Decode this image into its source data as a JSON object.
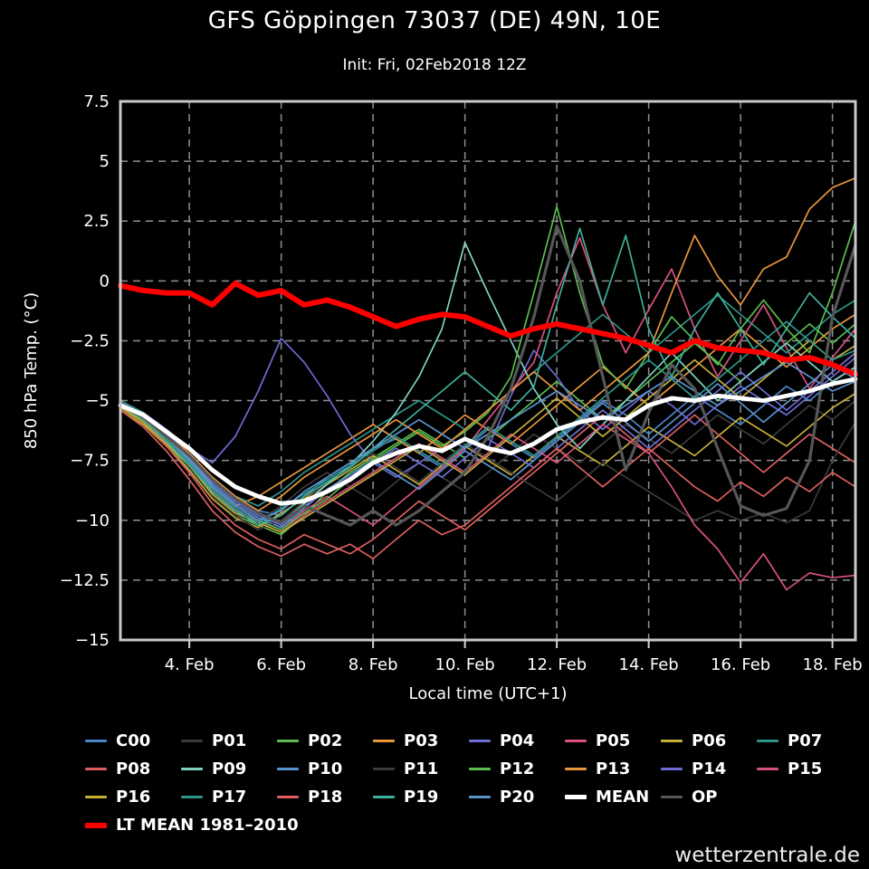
{
  "title": "GFS Göppingen 73037 (DE) 49N, 10E",
  "subtitle": "Init: Fri, 02Feb2018 12Z",
  "watermark": "wetterzentrale.de",
  "chart_data": {
    "type": "line",
    "title": "GFS Göppingen 73037 (DE) 49N, 10E",
    "subtitle": "Init: Fri, 02Feb2018 12Z",
    "xlabel": "Local time (UTC+1)",
    "ylabel": "850 hPa Temp. (°C)",
    "grid": true,
    "legend_position": "bottom",
    "background": "#000000",
    "xlim": [
      2.5,
      18.5
    ],
    "ylim": [
      -15,
      7.5
    ],
    "x_unit": "day of February 2018",
    "x_tick_values": [
      4,
      6,
      8,
      10,
      12,
      14,
      16,
      18
    ],
    "x_tick_labels": [
      "4. Feb",
      "6. Feb",
      "8. Feb",
      "10. Feb",
      "12. Feb",
      "14. Feb",
      "16. Feb",
      "18. Feb"
    ],
    "y_ticks": [
      7.5,
      5,
      2.5,
      0,
      -2.5,
      -5,
      -7.5,
      -10,
      -12.5,
      -15
    ],
    "y_tick_labels": [
      "7.5",
      "5",
      "2.5",
      "0",
      "−2.5",
      "−5",
      "−7.5",
      "−10",
      "−12.5",
      "−15"
    ],
    "x": [
      2.5,
      3,
      3.5,
      4,
      4.5,
      5,
      5.5,
      6,
      6.5,
      7,
      7.5,
      8,
      8.5,
      9,
      9.5,
      10,
      10.5,
      11,
      11.5,
      12,
      12.5,
      13,
      13.5,
      14,
      14.5,
      15,
      15.5,
      16,
      16.5,
      17,
      17.5,
      18,
      18.5
    ],
    "series": [
      {
        "name": "C00",
        "color": "#4c86c8",
        "width": 1.7,
        "values": [
          -5.2,
          -5.8,
          -6.6,
          -7.4,
          -8.4,
          -9.2,
          -9.6,
          -9.8,
          -9.0,
          -8.2,
          -7.6,
          -7.0,
          -6.6,
          -7.2,
          -7.8,
          -7.0,
          -6.2,
          -6.8,
          -7.4,
          -6.6,
          -5.8,
          -5.0,
          -5.6,
          -6.4,
          -5.6,
          -4.8,
          -5.4,
          -6.0,
          -5.2,
          -4.4,
          -5.0,
          -4.2,
          -3.6
        ]
      },
      {
        "name": "P01",
        "color": "#3a3a3a",
        "width": 1.7,
        "values": [
          -5.1,
          -5.6,
          -6.4,
          -7.6,
          -8.8,
          -9.6,
          -10.0,
          -9.4,
          -8.6,
          -8.0,
          -8.6,
          -9.2,
          -8.4,
          -7.6,
          -8.2,
          -8.8,
          -8.0,
          -7.2,
          -6.4,
          -7.0,
          -7.6,
          -6.8,
          -6.0,
          -6.6,
          -7.2,
          -6.4,
          -5.6,
          -6.2,
          -6.8,
          -6.0,
          -5.2,
          -5.8,
          -5.0
        ]
      },
      {
        "name": "P02",
        "color": "#5cbc4f",
        "width": 1.7,
        "values": [
          -5.3,
          -5.9,
          -6.8,
          -7.8,
          -9.0,
          -9.8,
          -10.2,
          -10.6,
          -9.8,
          -8.8,
          -8.0,
          -7.4,
          -6.8,
          -6.2,
          -6.8,
          -7.4,
          -6.6,
          -5.8,
          -5.0,
          -4.2,
          -5.0,
          -5.8,
          -5.0,
          -4.2,
          -3.4,
          -2.6,
          -3.4,
          -4.2,
          -3.4,
          -2.6,
          -1.8,
          -2.6,
          -1.8
        ]
      },
      {
        "name": "P03",
        "color": "#e9953c",
        "width": 1.7,
        "values": [
          -5.2,
          -5.7,
          -6.5,
          -7.5,
          -8.6,
          -9.4,
          -9.0,
          -8.4,
          -7.8,
          -7.2,
          -6.6,
          -6.0,
          -6.6,
          -7.2,
          -6.4,
          -5.6,
          -6.2,
          -6.8,
          -6.0,
          -5.2,
          -4.4,
          -3.6,
          -4.4,
          -5.2,
          -4.4,
          -3.6,
          -2.8,
          -2.0,
          -2.8,
          -3.6,
          -2.8,
          -2.0,
          -1.4
        ]
      },
      {
        "name": "P04",
        "color": "#6c6cd4",
        "width": 1.7,
        "values": [
          -5.1,
          -5.5,
          -6.2,
          -7.0,
          -7.6,
          -6.5,
          -4.6,
          -2.4,
          -3.4,
          -4.8,
          -6.4,
          -7.6,
          -8.2,
          -7.6,
          -7.0,
          -6.6,
          -7.0,
          -4.8,
          -2.9,
          -4.0,
          -5.4,
          -6.2,
          -5.4,
          -4.6,
          -5.2,
          -6.0,
          -5.2,
          -4.4,
          -5.0,
          -5.6,
          -4.8,
          -4.0,
          -3.2
        ]
      },
      {
        "name": "P05",
        "color": "#d8517e",
        "width": 1.7,
        "values": [
          -5.3,
          -5.8,
          -6.7,
          -7.7,
          -8.8,
          -9.6,
          -10.0,
          -10.4,
          -9.6,
          -9.0,
          -9.6,
          -10.2,
          -9.4,
          -8.6,
          -7.8,
          -7.0,
          -5.8,
          -4.6,
          -3.4,
          -0.5,
          1.8,
          -1.0,
          -3.0,
          -1.2,
          0.5,
          -2.0,
          -4.0,
          -2.5,
          -1.0,
          -2.8,
          -4.5,
          -3.2,
          -2.0
        ]
      },
      {
        "name": "P06",
        "color": "#c4ae39",
        "width": 1.7,
        "values": [
          -5.4,
          -6.0,
          -6.9,
          -7.9,
          -9.1,
          -9.9,
          -10.3,
          -9.7,
          -9.1,
          -8.5,
          -7.9,
          -7.3,
          -7.9,
          -8.5,
          -7.7,
          -6.9,
          -7.5,
          -8.1,
          -7.3,
          -6.5,
          -7.1,
          -7.7,
          -6.9,
          -6.1,
          -6.7,
          -7.3,
          -6.5,
          -5.7,
          -6.3,
          -6.9,
          -6.1,
          -5.3,
          -4.7
        ]
      },
      {
        "name": "P07",
        "color": "#2e9388",
        "width": 1.7,
        "values": [
          -5.0,
          -5.5,
          -6.3,
          -7.2,
          -8.2,
          -9.0,
          -9.4,
          -8.8,
          -8.0,
          -7.4,
          -6.8,
          -6.2,
          -5.6,
          -5.0,
          -5.6,
          -6.2,
          -5.4,
          -4.6,
          -3.8,
          -3.0,
          -2.2,
          -1.4,
          -2.2,
          -3.0,
          -2.2,
          -1.4,
          -0.6,
          -1.4,
          -2.2,
          -3.0,
          -2.2,
          -1.4,
          -0.8
        ]
      },
      {
        "name": "P08",
        "color": "#dc5f5f",
        "width": 1.7,
        "values": [
          -5.3,
          -5.9,
          -6.9,
          -8.0,
          -9.3,
          -10.2,
          -10.8,
          -11.2,
          -10.6,
          -11.0,
          -11.4,
          -10.8,
          -10.0,
          -9.2,
          -9.8,
          -10.4,
          -9.6,
          -8.8,
          -8.0,
          -7.2,
          -6.4,
          -5.6,
          -6.4,
          -7.2,
          -6.4,
          -5.6,
          -6.4,
          -7.2,
          -8.0,
          -7.2,
          -6.4,
          -7.0,
          -7.6
        ]
      },
      {
        "name": "P09",
        "color": "#7fd2c0",
        "width": 1.7,
        "values": [
          -5.1,
          -5.6,
          -6.4,
          -7.3,
          -8.3,
          -9.1,
          -9.7,
          -10.1,
          -9.3,
          -8.5,
          -7.7,
          -6.7,
          -5.5,
          -4.0,
          -2.0,
          1.6,
          -0.5,
          -2.5,
          -4.5,
          -6.0,
          -7.0,
          -6.0,
          -5.0,
          -4.0,
          -3.0,
          -4.0,
          -5.0,
          -4.2,
          -3.4,
          -2.6,
          -3.4,
          -4.2,
          -3.6
        ]
      },
      {
        "name": "P10",
        "color": "#5b93cf",
        "width": 1.7,
        "values": [
          -5.2,
          -5.7,
          -6.5,
          -7.4,
          -8.5,
          -9.3,
          -9.9,
          -10.3,
          -9.5,
          -8.7,
          -8.1,
          -7.5,
          -8.1,
          -8.7,
          -7.9,
          -7.1,
          -7.7,
          -8.3,
          -7.5,
          -6.7,
          -5.9,
          -5.1,
          -5.9,
          -6.7,
          -5.9,
          -5.1,
          -4.3,
          -5.1,
          -5.9,
          -5.1,
          -4.3,
          -3.5,
          -4.1
        ]
      },
      {
        "name": "P11",
        "color": "#3a3a3a",
        "width": 1.7,
        "values": [
          -5.2,
          -5.8,
          -6.7,
          -7.8,
          -9.0,
          -9.8,
          -10.4,
          -10.0,
          -9.2,
          -8.4,
          -7.8,
          -7.2,
          -7.8,
          -8.4,
          -7.6,
          -6.8,
          -7.4,
          -8.0,
          -8.6,
          -9.2,
          -8.4,
          -7.6,
          -8.2,
          -8.8,
          -9.4,
          -10.0,
          -9.6,
          -10.0,
          -9.7,
          -10.1,
          -9.6,
          -7.5,
          -5.9
        ]
      },
      {
        "name": "P12",
        "color": "#5cbc4f",
        "width": 1.7,
        "values": [
          -5.3,
          -5.8,
          -6.6,
          -7.5,
          -8.6,
          -9.4,
          -10.0,
          -10.4,
          -9.7,
          -9.1,
          -8.3,
          -7.5,
          -6.9,
          -6.3,
          -6.9,
          -6.3,
          -5.5,
          -4.0,
          -0.5,
          3.1,
          -0.5,
          -3.5,
          -4.5,
          -3.0,
          -1.5,
          -2.5,
          -3.5,
          -2.0,
          -0.8,
          -2.0,
          -3.0,
          -0.5,
          2.5
        ]
      },
      {
        "name": "P13",
        "color": "#e9953c",
        "width": 1.7,
        "values": [
          -5.1,
          -5.6,
          -6.3,
          -7.2,
          -8.2,
          -9.0,
          -9.6,
          -9.0,
          -8.2,
          -7.6,
          -7.0,
          -6.4,
          -5.8,
          -6.4,
          -7.0,
          -6.2,
          -5.4,
          -4.6,
          -3.8,
          -4.6,
          -5.4,
          -4.6,
          -3.8,
          -3.0,
          -0.5,
          1.9,
          0.2,
          -1.0,
          0.5,
          1.0,
          3.0,
          3.9,
          4.3
        ]
      },
      {
        "name": "P14",
        "color": "#6c6cd4",
        "width": 1.7,
        "values": [
          -5.2,
          -5.6,
          -6.4,
          -7.3,
          -8.4,
          -9.2,
          -9.8,
          -10.2,
          -9.4,
          -8.8,
          -8.2,
          -7.6,
          -7.0,
          -7.6,
          -8.2,
          -7.4,
          -6.6,
          -7.2,
          -7.8,
          -7.0,
          -6.2,
          -5.4,
          -6.2,
          -7.0,
          -6.2,
          -5.4,
          -4.6,
          -3.8,
          -4.6,
          -5.4,
          -4.6,
          -3.8,
          -3.0
        ]
      },
      {
        "name": "P15",
        "color": "#d8517e",
        "width": 1.7,
        "values": [
          -5.2,
          -5.7,
          -6.6,
          -7.6,
          -8.7,
          -9.5,
          -10.1,
          -10.5,
          -9.8,
          -9.2,
          -8.6,
          -8.0,
          -7.4,
          -6.8,
          -7.4,
          -8.0,
          -7.2,
          -6.4,
          -7.0,
          -7.6,
          -6.8,
          -6.0,
          -6.6,
          -7.2,
          -8.6,
          -10.2,
          -11.2,
          -12.6,
          -11.4,
          -12.9,
          -12.2,
          -12.4,
          -12.3
        ]
      },
      {
        "name": "P16",
        "color": "#c4ae39",
        "width": 1.7,
        "values": [
          -5.3,
          -5.9,
          -6.8,
          -7.7,
          -8.9,
          -9.7,
          -10.1,
          -10.5,
          -9.9,
          -9.3,
          -8.7,
          -8.1,
          -7.5,
          -6.9,
          -7.5,
          -8.1,
          -7.3,
          -6.5,
          -5.7,
          -4.9,
          -5.7,
          -6.5,
          -5.7,
          -4.9,
          -4.1,
          -3.3,
          -4.1,
          -4.9,
          -4.1,
          -3.3,
          -2.5,
          -3.3,
          -2.7
        ]
      },
      {
        "name": "P17",
        "color": "#2e9388",
        "width": 1.7,
        "values": [
          -5.1,
          -5.7,
          -6.6,
          -7.6,
          -8.7,
          -9.5,
          -10.1,
          -9.5,
          -8.9,
          -8.3,
          -7.7,
          -7.1,
          -6.5,
          -7.1,
          -7.7,
          -6.9,
          -6.1,
          -6.7,
          -7.3,
          -6.5,
          -5.7,
          -4.9,
          -4.1,
          -3.3,
          -4.1,
          -4.9,
          -4.1,
          -3.3,
          -2.5,
          -1.7,
          -2.5,
          -3.3,
          -2.9
        ]
      },
      {
        "name": "P18",
        "color": "#dc5f5f",
        "width": 1.7,
        "values": [
          -5.4,
          -6.1,
          -7.1,
          -8.3,
          -9.6,
          -10.5,
          -11.1,
          -11.5,
          -11.0,
          -11.4,
          -11.0,
          -11.6,
          -10.8,
          -10.0,
          -10.6,
          -10.2,
          -9.4,
          -8.6,
          -7.8,
          -7.0,
          -7.8,
          -8.6,
          -7.8,
          -7.0,
          -7.8,
          -8.6,
          -9.2,
          -8.4,
          -9.0,
          -8.2,
          -8.8,
          -8.0,
          -8.6
        ]
      },
      {
        "name": "P19",
        "color": "#3fae9b",
        "width": 1.7,
        "values": [
          -5.2,
          -5.8,
          -6.7,
          -7.7,
          -8.8,
          -9.6,
          -10.2,
          -9.8,
          -9.0,
          -8.4,
          -7.8,
          -7.0,
          -6.2,
          -5.4,
          -4.6,
          -3.8,
          -4.6,
          -5.4,
          -4.4,
          -1.0,
          2.2,
          -1.0,
          1.9,
          -2.0,
          -4.0,
          -2.0,
          -0.5,
          -2.0,
          -3.5,
          -2.0,
          -0.5,
          -1.5,
          -2.4
        ]
      },
      {
        "name": "P20",
        "color": "#5b93cf",
        "width": 1.7,
        "values": [
          -5.1,
          -5.6,
          -6.5,
          -7.5,
          -8.6,
          -9.4,
          -10.0,
          -9.6,
          -8.8,
          -8.2,
          -7.6,
          -7.0,
          -6.4,
          -5.8,
          -6.4,
          -7.0,
          -6.4,
          -5.8,
          -5.2,
          -4.6,
          -5.2,
          -5.8,
          -5.2,
          -4.6,
          -4.0,
          -4.6,
          -5.2,
          -4.6,
          -4.0,
          -3.4,
          -4.0,
          -4.6,
          -4.2
        ]
      },
      {
        "name": "MEAN",
        "color": "#ffffff",
        "width": 4.8,
        "values": [
          -5.2,
          -5.6,
          -6.3,
          -7.0,
          -7.9,
          -8.6,
          -9.0,
          -9.3,
          -9.2,
          -8.8,
          -8.3,
          -7.6,
          -7.2,
          -6.9,
          -7.1,
          -6.6,
          -7.0,
          -7.2,
          -6.8,
          -6.2,
          -5.9,
          -5.7,
          -5.8,
          -5.2,
          -4.9,
          -5.0,
          -4.8,
          -4.9,
          -5.0,
          -4.8,
          -4.6,
          -4.3,
          -4.1
        ]
      },
      {
        "name": "OP",
        "color": "#565656",
        "width": 3.2,
        "values": [
          -5.2,
          -5.7,
          -6.5,
          -7.3,
          -8.3,
          -9.1,
          -9.7,
          -10.1,
          -9.4,
          -9.8,
          -10.2,
          -9.6,
          -10.2,
          -9.6,
          -8.8,
          -8.0,
          -6.5,
          -4.5,
          -1.5,
          2.3,
          0.0,
          -4.0,
          -7.9,
          -5.5,
          -3.5,
          -4.5,
          -7.0,
          -9.4,
          -9.8,
          -9.5,
          -7.5,
          -1.5,
          1.5
        ]
      }
    ],
    "lt_mean": {
      "name": "LT MEAN 1981–2010",
      "color": "#ff0000",
      "width": 6,
      "values": [
        -0.2,
        -0.4,
        -0.5,
        -0.5,
        -1.0,
        -0.1,
        -0.6,
        -0.4,
        -1.0,
        -0.8,
        -1.1,
        -1.5,
        -1.9,
        -1.6,
        -1.4,
        -1.5,
        -1.9,
        -2.3,
        -2.0,
        -1.8,
        -2.0,
        -2.2,
        -2.4,
        -2.7,
        -3.0,
        -2.5,
        -2.8,
        -2.9,
        -3.0,
        -3.3,
        -3.2,
        -3.5,
        -3.9
      ]
    }
  }
}
